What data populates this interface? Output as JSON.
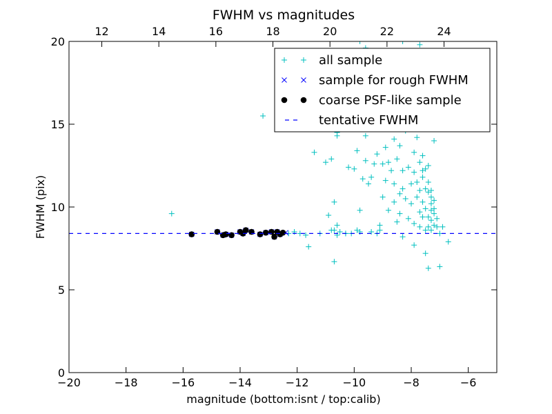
{
  "chart_data": {
    "type": "scatter",
    "title": "FWHM vs magnitudes",
    "xlabel": "magnitude (bottom:isnt / top:calib)",
    "ylabel": "FWHM (pix)",
    "xlim": [
      -20,
      -5
    ],
    "ylim": [
      0,
      20
    ],
    "x_ticks": [
      -20,
      -18,
      -16,
      -14,
      -12,
      -10,
      -8,
      -6
    ],
    "x_tick_labels": [
      "−20",
      "−18",
      "−16",
      "−14",
      "−12",
      "−10",
      "−8",
      "−6"
    ],
    "y_ticks": [
      0,
      5,
      10,
      15,
      20
    ],
    "y_tick_labels": [
      "0",
      "5",
      "10",
      "15",
      "20"
    ],
    "top_axis": {
      "ticks": [
        12,
        14,
        16,
        18,
        20,
        22,
        24
      ],
      "tick_labels": [
        "12",
        "14",
        "16",
        "18",
        "20",
        "22",
        "24"
      ],
      "offset": 30.85
    },
    "grid": false,
    "legend_position": "top-right",
    "colors": {
      "all": "#00bfbf",
      "rough": "#0000ff",
      "coarse": "#000000",
      "tentative": "#0000ff"
    },
    "tentative_fwhm": 8.4,
    "series": [
      {
        "name": "all sample",
        "marker": "+",
        "points": [
          [
            -16.4,
            9.6
          ],
          [
            -13.2,
            15.5
          ],
          [
            -12.3,
            8.4
          ],
          [
            -12.1,
            8.5
          ],
          [
            -11.9,
            8.4
          ],
          [
            -11.7,
            8.3
          ],
          [
            -11.6,
            7.6
          ],
          [
            -11.4,
            13.3
          ],
          [
            -11.2,
            8.4
          ],
          [
            -11.0,
            12.7
          ],
          [
            -10.9,
            9.5
          ],
          [
            -10.8,
            8.6
          ],
          [
            -10.8,
            12.9
          ],
          [
            -10.7,
            10.3
          ],
          [
            -10.7,
            6.7
          ],
          [
            -10.7,
            8.6
          ],
          [
            -10.6,
            8.3
          ],
          [
            -10.6,
            8.9
          ],
          [
            -10.6,
            14.3
          ],
          [
            -10.6,
            14.5
          ],
          [
            -10.5,
            8.5
          ],
          [
            -10.3,
            8.4
          ],
          [
            -10.3,
            8.4
          ],
          [
            -10.2,
            12.4
          ],
          [
            -10.1,
            8.4
          ],
          [
            -10.0,
            12.3
          ],
          [
            -9.9,
            8.6
          ],
          [
            -9.9,
            13.4
          ],
          [
            -9.8,
            9.8
          ],
          [
            -9.8,
            8.5
          ],
          [
            -9.7,
            11.7
          ],
          [
            -9.6,
            14.3
          ],
          [
            -9.6,
            12.8
          ],
          [
            -9.5,
            11.4
          ],
          [
            -9.5,
            15.3
          ],
          [
            -9.4,
            8.5
          ],
          [
            -9.4,
            11.8
          ],
          [
            -9.3,
            12.6
          ],
          [
            -9.2,
            13.2
          ],
          [
            -9.2,
            8.4
          ],
          [
            -9.1,
            8.6
          ],
          [
            -9.1,
            8.9
          ],
          [
            -9.0,
            12.6
          ],
          [
            -9.0,
            10.6
          ],
          [
            -8.9,
            13.6
          ],
          [
            -8.9,
            11.6
          ],
          [
            -8.8,
            12.7
          ],
          [
            -8.8,
            9.8
          ],
          [
            -8.7,
            16.3
          ],
          [
            -8.7,
            12.2
          ],
          [
            -8.6,
            14.1
          ],
          [
            -8.6,
            11.4
          ],
          [
            -8.6,
            10.3
          ],
          [
            -8.5,
            9.1
          ],
          [
            -8.5,
            12.9
          ],
          [
            -8.4,
            10.8
          ],
          [
            -8.4,
            13.7
          ],
          [
            -8.4,
            9.6
          ],
          [
            -8.3,
            12.2
          ],
          [
            -8.3,
            11.1
          ],
          [
            -8.3,
            8.2
          ],
          [
            -8.2,
            14.6
          ],
          [
            -8.2,
            10.5
          ],
          [
            -8.2,
            16.3
          ],
          [
            -8.1,
            12.4
          ],
          [
            -8.1,
            9.3
          ],
          [
            -8.0,
            11.4
          ],
          [
            -8.0,
            10.2
          ],
          [
            -7.9,
            13.3
          ],
          [
            -7.9,
            12.1
          ],
          [
            -7.9,
            9.0
          ],
          [
            -7.9,
            7.7
          ],
          [
            -7.8,
            11.5
          ],
          [
            -7.8,
            10.6
          ],
          [
            -7.8,
            14.2
          ],
          [
            -7.8,
            16.0
          ],
          [
            -7.7,
            12.7
          ],
          [
            -7.7,
            9.7
          ],
          [
            -7.7,
            8.8
          ],
          [
            -7.7,
            11.0
          ],
          [
            -7.6,
            13.1
          ],
          [
            -7.6,
            12.2
          ],
          [
            -7.6,
            10.3
          ],
          [
            -7.6,
            9.4
          ],
          [
            -7.6,
            11.8
          ],
          [
            -7.5,
            12.3
          ],
          [
            -7.5,
            9.9
          ],
          [
            -7.5,
            8.6
          ],
          [
            -7.5,
            11.1
          ],
          [
            -7.5,
            7.2
          ],
          [
            -7.4,
            12.5
          ],
          [
            -7.4,
            10.9
          ],
          [
            -7.4,
            9.4
          ],
          [
            -7.4,
            8.8
          ],
          [
            -7.4,
            11.5
          ],
          [
            -7.4,
            6.3
          ],
          [
            -7.3,
            10.6
          ],
          [
            -7.3,
            9.8
          ],
          [
            -7.3,
            9.2
          ],
          [
            -7.3,
            10.2
          ],
          [
            -7.3,
            11.0
          ],
          [
            -7.3,
            8.6
          ],
          [
            -7.2,
            9.6
          ],
          [
            -7.2,
            10.4
          ],
          [
            -7.2,
            8.9
          ],
          [
            -7.2,
            14.0
          ],
          [
            -7.2,
            9.9
          ],
          [
            -7.1,
            9.3
          ],
          [
            -7.1,
            8.8
          ],
          [
            -7.0,
            6.4
          ],
          [
            -7.0,
            8.4
          ],
          [
            -6.9,
            8.8
          ],
          [
            -6.7,
            7.9
          ],
          [
            -8.9,
            17.0
          ],
          [
            -7.7,
            19.8
          ],
          [
            -7.2,
            19.4
          ],
          [
            -8.5,
            18.4
          ],
          [
            -8.2,
            17.6
          ],
          [
            -9.6,
            19.6
          ],
          [
            -8.0,
            19.1
          ],
          [
            -7.6,
            18.9
          ],
          [
            -9.2,
            18.2
          ],
          [
            -8.3,
            20.0
          ],
          [
            -9.8,
            20.0
          ],
          [
            -7.9,
            17.9
          ]
        ]
      },
      {
        "name": "sample for rough FWHM",
        "marker": "x",
        "points": [
          [
            -15.7,
            8.35
          ],
          [
            -14.8,
            8.5
          ],
          [
            -14.6,
            8.3
          ],
          [
            -14.5,
            8.35
          ],
          [
            -14.3,
            8.3
          ],
          [
            -14.0,
            8.5
          ],
          [
            -13.9,
            8.4
          ],
          [
            -13.8,
            8.6
          ],
          [
            -13.6,
            8.5
          ],
          [
            -13.3,
            8.35
          ],
          [
            -13.1,
            8.45
          ],
          [
            -12.9,
            8.5
          ],
          [
            -12.8,
            8.2
          ],
          [
            -12.7,
            8.5
          ],
          [
            -12.6,
            8.35
          ],
          [
            -12.4,
            8.45
          ]
        ]
      },
      {
        "name": "coarse PSF-like sample",
        "marker": "o",
        "points": [
          [
            -15.7,
            8.35
          ],
          [
            -14.8,
            8.5
          ],
          [
            -14.6,
            8.3
          ],
          [
            -14.5,
            8.35
          ],
          [
            -14.3,
            8.3
          ],
          [
            -14.0,
            8.5
          ],
          [
            -13.9,
            8.4
          ],
          [
            -13.8,
            8.6
          ],
          [
            -13.6,
            8.5
          ],
          [
            -13.3,
            8.35
          ],
          [
            -13.1,
            8.45
          ],
          [
            -12.9,
            8.5
          ],
          [
            -12.8,
            8.2
          ],
          [
            -12.7,
            8.5
          ],
          [
            -12.6,
            8.35
          ],
          [
            -12.5,
            8.45
          ]
        ]
      },
      {
        "name": "tentative FWHM",
        "marker": "dashed-line",
        "points": [
          [
            -20,
            8.4
          ],
          [
            -5,
            8.4
          ]
        ]
      }
    ]
  }
}
